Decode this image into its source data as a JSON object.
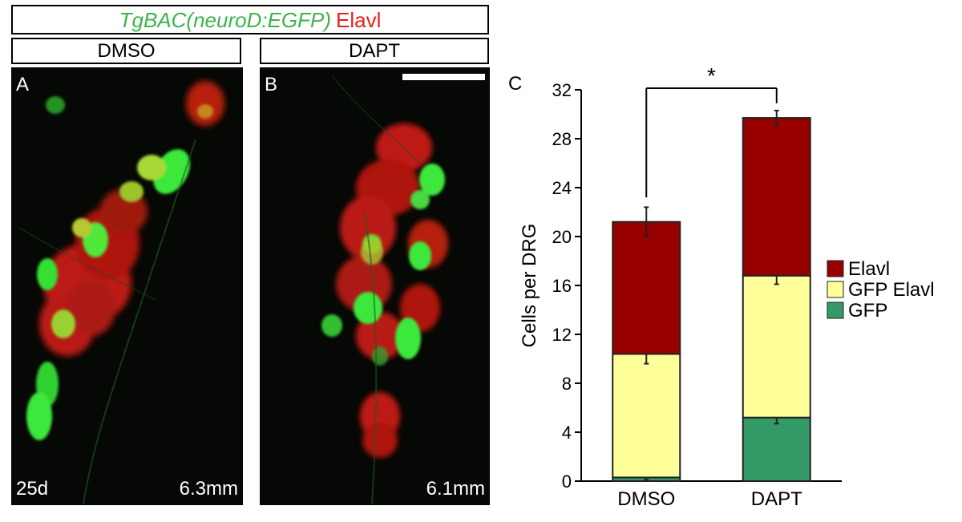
{
  "header": {
    "title_green": "TgBAC(neuroD:EGFP)",
    "title_red": "Elavl",
    "col_left": "DMSO",
    "col_right": "DAPT"
  },
  "panels": {
    "a": {
      "letter": "A",
      "age": "25d",
      "size": "6.3mm"
    },
    "b": {
      "letter": "B",
      "size": "6.1mm"
    }
  },
  "colors": {
    "title_green": "#3cb44b",
    "title_red": "#e8201a",
    "elavl": "#990000",
    "gfp_elavl": "#ffff99",
    "gfp": "#339966",
    "fluor_green": "#2ee82e",
    "fluor_red": "#d21a14"
  },
  "chart_data": {
    "type": "bar",
    "stacked": true,
    "panel_letter": "C",
    "categories": [
      "DMSO",
      "DAPT"
    ],
    "ylabel": "Cells per DRG",
    "xlabel": "",
    "ylim": [
      0,
      32
    ],
    "yticks": [
      0,
      4,
      8,
      12,
      16,
      20,
      24,
      28,
      32
    ],
    "series": [
      {
        "name": "GFP",
        "color": "#339966",
        "values": [
          0.3,
          5.2
        ],
        "errors": [
          0.2,
          0.5
        ]
      },
      {
        "name": "GFP Elavl",
        "color": "#ffff99",
        "values": [
          10.1,
          11.6
        ],
        "errors": [
          0.8,
          0.7
        ]
      },
      {
        "name": "Elavl",
        "color": "#990000",
        "values": [
          10.8,
          12.9
        ],
        "errors": [
          1.2,
          0.6
        ]
      }
    ],
    "legend": [
      "Elavl",
      "GFP Elavl",
      "GFP"
    ],
    "legend_position": "right",
    "significance": {
      "between": [
        "DMSO",
        "DAPT"
      ],
      "label": "*"
    },
    "grid": false
  }
}
